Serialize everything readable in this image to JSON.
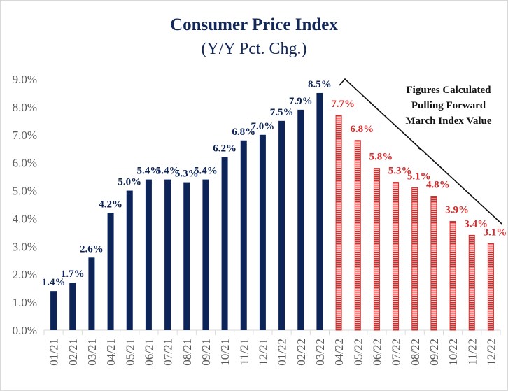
{
  "chart_data": {
    "type": "bar",
    "title": "Consumer Price Index",
    "subtitle": "(Y/Y Pct. Chg.)",
    "xlabel": "",
    "ylabel": "",
    "ylim": [
      0,
      9
    ],
    "yticks": [
      "0.0%",
      "1.0%",
      "2.0%",
      "3.0%",
      "4.0%",
      "5.0%",
      "6.0%",
      "7.0%",
      "8.0%",
      "9.0%"
    ],
    "grid": false,
    "categories": [
      "01/21",
      "02/21",
      "03/21",
      "04/21",
      "05/21",
      "06/21",
      "07/21",
      "08/21",
      "09/21",
      "10/21",
      "11/21",
      "12/21",
      "01/22",
      "02/22",
      "03/22",
      "04/22",
      "05/22",
      "06/22",
      "07/22",
      "08/22",
      "09/22",
      "10/22",
      "11/22",
      "12/22"
    ],
    "values": [
      1.4,
      1.7,
      2.6,
      4.2,
      5.0,
      5.4,
      5.4,
      5.3,
      5.4,
      6.2,
      6.8,
      7.0,
      7.5,
      7.9,
      8.5,
      7.7,
      6.8,
      5.8,
      5.3,
      5.1,
      4.8,
      3.9,
      3.4,
      3.1
    ],
    "labels": [
      "1.4%",
      "1.7%",
      "2.6%",
      "4.2%",
      "5.0%",
      "5.4%",
      "5.4%",
      "5.3%",
      "5.4%",
      "6.2%",
      "6.8%",
      "7.0%",
      "7.5%",
      "7.9%",
      "8.5%",
      "7.7%",
      "6.8%",
      "5.8%",
      "5.3%",
      "5.1%",
      "4.8%",
      "3.9%",
      "3.4%",
      "3.1%"
    ],
    "actual_color": "#0d2458",
    "projected_color": "#d42a2a",
    "projected_from_index": 15,
    "annotation": [
      "Figures Calculated",
      "Pulling Forward",
      "March Index Value"
    ]
  }
}
